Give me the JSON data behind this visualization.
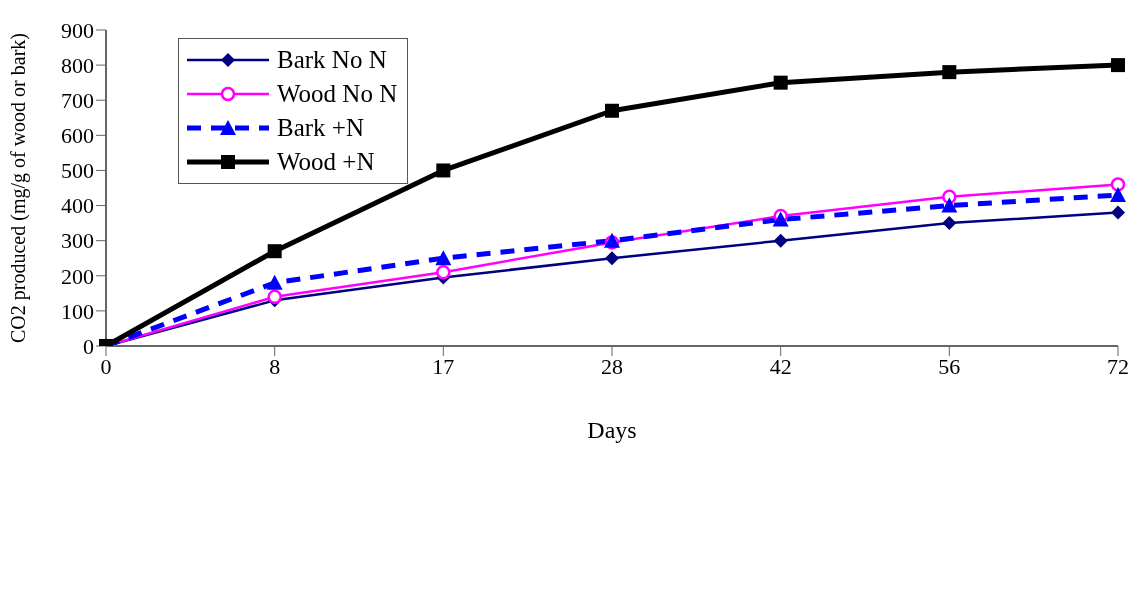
{
  "chart_data": {
    "type": "line",
    "xlabel": "Days",
    "ylabel": "CO2 produced (mg/g of wood or bark)",
    "categories": [
      "0",
      "8",
      "17",
      "28",
      "42",
      "56",
      "72"
    ],
    "ylim": [
      0,
      900
    ],
    "yticks": [
      0,
      100,
      200,
      300,
      400,
      500,
      600,
      700,
      800,
      900
    ],
    "grid": false,
    "legend": "top left",
    "series": [
      {
        "name": "Bark No N",
        "color": "#000080",
        "marker": "diamond",
        "line_style": "solid",
        "values": [
          0,
          130,
          195,
          250,
          300,
          350,
          380
        ]
      },
      {
        "name": "Wood No N",
        "color": "#ff00ff",
        "marker": "circle",
        "line_style": "solid",
        "values": [
          0,
          140,
          210,
          295,
          370,
          425,
          460
        ]
      },
      {
        "name": "Bark +N",
        "color": "#0000ff",
        "marker": "triangle",
        "line_style": "dashed",
        "values": [
          0,
          180,
          250,
          300,
          360,
          400,
          430
        ]
      },
      {
        "name": "Wood +N",
        "color": "#000000",
        "marker": "square",
        "line_style": "solid",
        "values": [
          0,
          270,
          500,
          670,
          750,
          780,
          800
        ]
      }
    ]
  }
}
